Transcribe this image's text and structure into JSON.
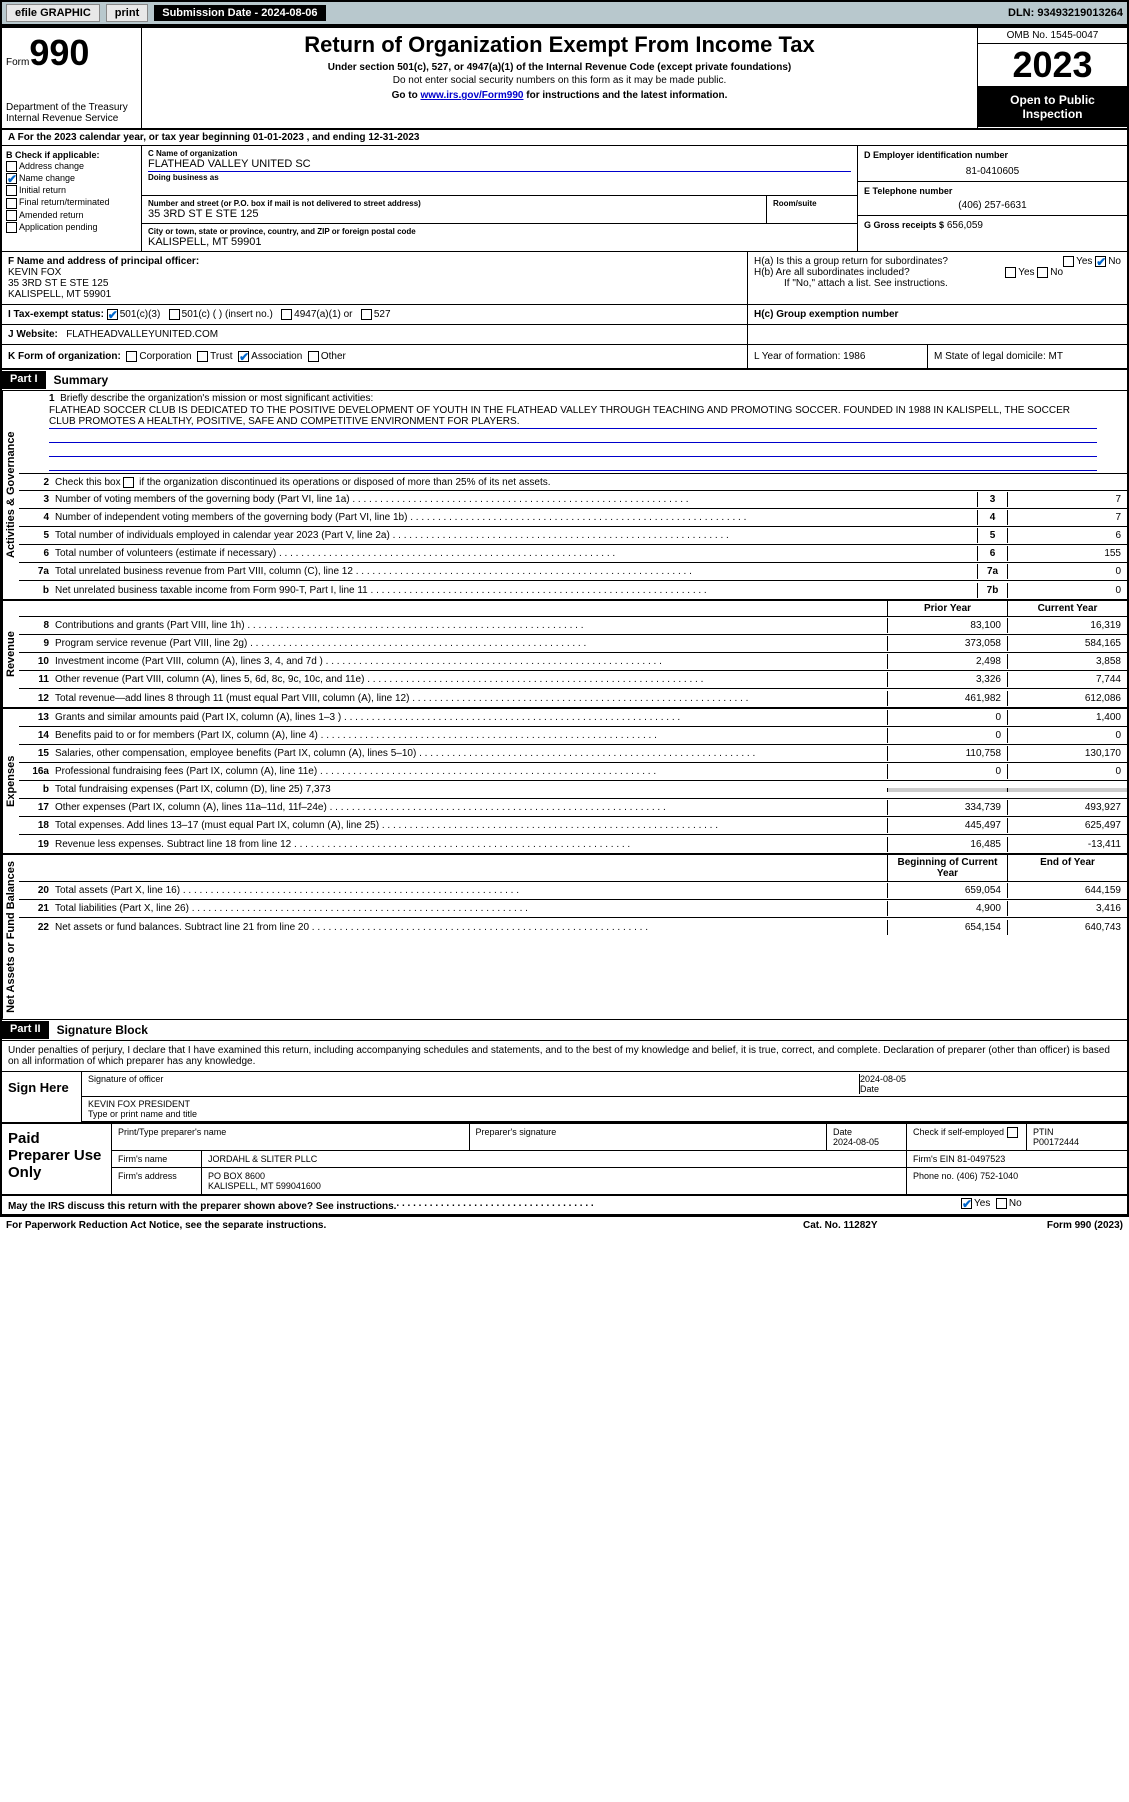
{
  "topbar": {
    "efile": "efile GRAPHIC",
    "print": "print",
    "submission_label": "Submission Date - 2024-08-06",
    "dln": "DLN: 93493219013264"
  },
  "header": {
    "form_prefix": "Form",
    "form_number": "990",
    "dept": "Department of the Treasury",
    "irs": "Internal Revenue Service",
    "title": "Return of Organization Exempt From Income Tax",
    "sub1": "Under section 501(c), 527, or 4947(a)(1) of the Internal Revenue Code (except private foundations)",
    "sub2": "Do not enter social security numbers on this form as it may be made public.",
    "sub3_pre": "Go to ",
    "sub3_link": "www.irs.gov/Form990",
    "sub3_post": " for instructions and the latest information.",
    "omb": "OMB No. 1545-0047",
    "year": "2023",
    "public": "Open to Public Inspection"
  },
  "row_a": "A  For the 2023 calendar year, or tax year beginning 01-01-2023    , and ending 12-31-2023",
  "col_b": {
    "title": "B Check if applicable:",
    "address": "Address change",
    "name": "Name change",
    "initial": "Initial return",
    "final": "Final return/terminated",
    "amended": "Amended return",
    "app": "Application pending"
  },
  "col_c": {
    "name_lbl": "C Name of organization",
    "name": "FLATHEAD VALLEY UNITED SC",
    "dba_lbl": "Doing business as",
    "addr_lbl": "Number and street (or P.O. box if mail is not delivered to street address)",
    "room_lbl": "Room/suite",
    "addr": "35 3RD ST E STE 125",
    "city_lbl": "City or town, state or province, country, and ZIP or foreign postal code",
    "city": "KALISPELL, MT  59901"
  },
  "col_d": {
    "ein_lbl": "D Employer identification number",
    "ein": "81-0410605",
    "phone_lbl": "E Telephone number",
    "phone": "(406) 257-6631",
    "gross_lbl": "G Gross receipts $",
    "gross": "656,059"
  },
  "section_f": {
    "lbl": "F Name and address of principal officer:",
    "name": "KEVIN FOX",
    "addr1": "35 3RD ST E STE 125",
    "addr2": "KALISPELL, MT  59901",
    "ha": "H(a)  Is this a group return for subordinates?",
    "hb": "H(b)  Are all subordinates included?",
    "hb_note": "If \"No,\" attach a list. See instructions.",
    "yes": "Yes",
    "no": "No"
  },
  "row_i": {
    "lbl": "I    Tax-exempt status:",
    "c3": "501(c)(3)",
    "c_other": "501(c) (  ) (insert no.)",
    "a1": "4947(a)(1) or",
    "s527": "527",
    "hc": "H(c)  Group exemption number"
  },
  "row_j": {
    "lbl": "J    Website:",
    "site": "FLATHEADVALLEYUNITED.COM"
  },
  "row_k": {
    "lbl": "K Form of organization:",
    "corp": "Corporation",
    "trust": "Trust",
    "assoc": "Association",
    "other": "Other",
    "l": "L Year of formation: 1986",
    "m": "M State of legal domicile: MT"
  },
  "part1": {
    "hdr": "Part I",
    "title": "Summary",
    "q1": "Briefly describe the organization's mission or most significant activities:",
    "mission": "FLATHEAD SOCCER CLUB IS DEDICATED TO THE POSITIVE DEVELOPMENT OF YOUTH IN THE FLATHEAD VALLEY THROUGH TEACHING AND PROMOTING SOCCER. FOUNDED IN 1988 IN KALISPELL, THE SOCCER CLUB PROMOTES A HEALTHY, POSITIVE, SAFE AND COMPETITIVE ENVIRONMENT FOR PLAYERS.",
    "q2": "Check this box      if the organization discontinued its operations or disposed of more than 25% of its net assets.",
    "gov_label": "Activities & Governance",
    "rev_label": "Revenue",
    "exp_label": "Expenses",
    "nab_label": "Net Assets or Fund Balances",
    "lines_gov": [
      {
        "n": "3",
        "d": "Number of voting members of the governing body (Part VI, line 1a)",
        "b": "3",
        "v": "7"
      },
      {
        "n": "4",
        "d": "Number of independent voting members of the governing body (Part VI, line 1b)",
        "b": "4",
        "v": "7"
      },
      {
        "n": "5",
        "d": "Total number of individuals employed in calendar year 2023 (Part V, line 2a)",
        "b": "5",
        "v": "6"
      },
      {
        "n": "6",
        "d": "Total number of volunteers (estimate if necessary)",
        "b": "6",
        "v": "155"
      },
      {
        "n": "7a",
        "d": "Total unrelated business revenue from Part VIII, column (C), line 12",
        "b": "7a",
        "v": "0"
      },
      {
        "n": "b",
        "d": "Net unrelated business taxable income from Form 990-T, Part I, line 11",
        "b": "7b",
        "v": "0"
      }
    ],
    "prior": "Prior Year",
    "current": "Current Year",
    "lines_rev": [
      {
        "n": "8",
        "d": "Contributions and grants (Part VIII, line 1h)",
        "p": "83,100",
        "c": "16,319"
      },
      {
        "n": "9",
        "d": "Program service revenue (Part VIII, line 2g)",
        "p": "373,058",
        "c": "584,165"
      },
      {
        "n": "10",
        "d": "Investment income (Part VIII, column (A), lines 3, 4, and 7d )",
        "p": "2,498",
        "c": "3,858"
      },
      {
        "n": "11",
        "d": "Other revenue (Part VIII, column (A), lines 5, 6d, 8c, 9c, 10c, and 11e)",
        "p": "3,326",
        "c": "7,744"
      },
      {
        "n": "12",
        "d": "Total revenue—add lines 8 through 11 (must equal Part VIII, column (A), line 12)",
        "p": "461,982",
        "c": "612,086"
      }
    ],
    "lines_exp": [
      {
        "n": "13",
        "d": "Grants and similar amounts paid (Part IX, column (A), lines 1–3 )",
        "p": "0",
        "c": "1,400"
      },
      {
        "n": "14",
        "d": "Benefits paid to or for members (Part IX, column (A), line 4)",
        "p": "0",
        "c": "0"
      },
      {
        "n": "15",
        "d": "Salaries, other compensation, employee benefits (Part IX, column (A), lines 5–10)",
        "p": "110,758",
        "c": "130,170"
      },
      {
        "n": "16a",
        "d": "Professional fundraising fees (Part IX, column (A), line 11e)",
        "p": "0",
        "c": "0"
      },
      {
        "n": "b",
        "d": "Total fundraising expenses (Part IX, column (D), line 25) 7,373",
        "p": "",
        "c": ""
      },
      {
        "n": "17",
        "d": "Other expenses (Part IX, column (A), lines 11a–11d, 11f–24e)",
        "p": "334,739",
        "c": "493,927"
      },
      {
        "n": "18",
        "d": "Total expenses. Add lines 13–17 (must equal Part IX, column (A), line 25)",
        "p": "445,497",
        "c": "625,497"
      },
      {
        "n": "19",
        "d": "Revenue less expenses. Subtract line 18 from line 12",
        "p": "16,485",
        "c": "-13,411"
      }
    ],
    "boy": "Beginning of Current Year",
    "eoy": "End of Year",
    "lines_nab": [
      {
        "n": "20",
        "d": "Total assets (Part X, line 16)",
        "p": "659,054",
        "c": "644,159"
      },
      {
        "n": "21",
        "d": "Total liabilities (Part X, line 26)",
        "p": "4,900",
        "c": "3,416"
      },
      {
        "n": "22",
        "d": "Net assets or fund balances. Subtract line 21 from line 20",
        "p": "654,154",
        "c": "640,743"
      }
    ]
  },
  "part2": {
    "hdr": "Part II",
    "title": "Signature Block",
    "text": "Under penalties of perjury, I declare that I have examined this return, including accompanying schedules and statements, and to the best of my knowledge and belief, it is true, correct, and complete. Declaration of preparer (other than officer) is based on all information of which preparer has any knowledge."
  },
  "sign": {
    "here": "Sign Here",
    "sig_lbl": "Signature of officer",
    "date_lbl": "Date",
    "date_val": "2024-08-05",
    "name": "KEVIN FOX  PRESIDENT",
    "name_lbl": "Type or print name and title"
  },
  "prep": {
    "title": "Paid Preparer Use Only",
    "pt_lbl": "Print/Type preparer's name",
    "sig_lbl": "Preparer's signature",
    "date_lbl": "Date",
    "date_val": "2024-08-05",
    "check_lbl": "Check        if self-employed",
    "ptin_lbl": "PTIN",
    "ptin": "P00172444",
    "firm_name_lbl": "Firm's name",
    "firm_name": "JORDAHL & SLITER PLLC",
    "firm_ein_lbl": "Firm's EIN",
    "firm_ein": "81-0497523",
    "firm_addr_lbl": "Firm's address",
    "firm_addr1": "PO BOX 8600",
    "firm_addr2": "KALISPELL, MT  599041600",
    "phone_lbl": "Phone no.",
    "phone": "(406) 752-1040"
  },
  "discuss": "May the IRS discuss this return with the preparer shown above? See instructions.",
  "footer": {
    "paperwork": "For Paperwork Reduction Act Notice, see the separate instructions.",
    "cat": "Cat. No. 11282Y",
    "form": "Form 990 (2023)"
  }
}
